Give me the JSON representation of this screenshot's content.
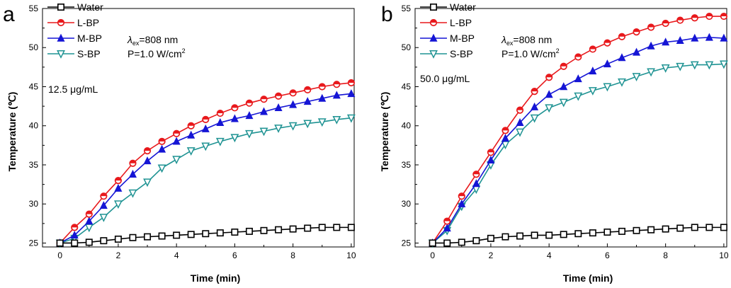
{
  "chart_data": [
    {
      "type": "line",
      "panel": "a",
      "xlabel": "Time (min)",
      "ylabel": "Temperature (℃)",
      "xlim": [
        -0.6,
        10.1
      ],
      "ylim": [
        24.5,
        55
      ],
      "xticks": [
        0,
        2,
        4,
        6,
        8,
        10
      ],
      "yticks": [
        25,
        30,
        35,
        40,
        45,
        50,
        55
      ],
      "grid": false,
      "legend": "top-left",
      "annotations": {
        "wavelength_symbol": "λ",
        "wavelength_sub": "ex",
        "wavelength_value": "=808 nm",
        "power": "P=1.0 W/cm",
        "power_exp": "2",
        "concentration": "12.5 μg/mL"
      },
      "x": [
        0,
        0.5,
        1,
        1.5,
        2,
        2.5,
        3,
        3.5,
        4,
        4.5,
        5,
        5.5,
        6,
        6.5,
        7,
        7.5,
        8,
        8.5,
        9,
        9.5,
        10
      ],
      "series": [
        {
          "name": "Water",
          "color": "#000000",
          "marker": "square",
          "values": [
            25.0,
            25.0,
            25.1,
            25.3,
            25.5,
            25.7,
            25.8,
            25.9,
            26.0,
            26.1,
            26.2,
            26.3,
            26.4,
            26.5,
            26.6,
            26.7,
            26.8,
            26.9,
            27.0,
            27.0,
            27.0
          ]
        },
        {
          "name": "L-BP",
          "color": "#e8191c",
          "marker": "circle",
          "values": [
            25.0,
            27.0,
            28.7,
            31.0,
            33.0,
            35.2,
            36.8,
            38.0,
            39.0,
            40.0,
            40.8,
            41.6,
            42.3,
            42.9,
            43.4,
            43.8,
            44.2,
            44.6,
            45.0,
            45.3,
            45.5
          ]
        },
        {
          "name": "M-BP",
          "color": "#1515d5",
          "marker": "triangle-up",
          "values": [
            25.0,
            26.0,
            27.8,
            29.8,
            32.0,
            33.8,
            35.5,
            37.0,
            38.0,
            38.8,
            39.6,
            40.4,
            40.9,
            41.3,
            41.8,
            42.3,
            42.7,
            43.1,
            43.5,
            43.9,
            44.1
          ]
        },
        {
          "name": "S-BP",
          "color": "#1f9393",
          "marker": "triangle-down",
          "values": [
            25.0,
            25.6,
            27.0,
            28.3,
            30.0,
            31.4,
            32.8,
            34.6,
            35.7,
            36.8,
            37.4,
            38.0,
            38.5,
            39.0,
            39.3,
            39.7,
            40.0,
            40.3,
            40.5,
            40.8,
            41.0
          ]
        }
      ]
    },
    {
      "type": "line",
      "panel": "b",
      "xlabel": "Time (min)",
      "ylabel": "Temperature (℃)",
      "xlim": [
        -0.6,
        10.1
      ],
      "ylim": [
        24.5,
        55
      ],
      "xticks": [
        0,
        2,
        4,
        6,
        8,
        10
      ],
      "yticks": [
        25,
        30,
        35,
        40,
        45,
        50,
        55
      ],
      "grid": false,
      "legend": "top-left",
      "annotations": {
        "wavelength_symbol": "λ",
        "wavelength_sub": "ex",
        "wavelength_value": "=808 nm",
        "power": "P=1.0 W/cm",
        "power_exp": "2",
        "concentration": "50.0 μg/mL"
      },
      "x": [
        0,
        0.5,
        1,
        1.5,
        2,
        2.5,
        3,
        3.5,
        4,
        4.5,
        5,
        5.5,
        6,
        6.5,
        7,
        7.5,
        8,
        8.5,
        9,
        9.5,
        10
      ],
      "series": [
        {
          "name": "Water",
          "color": "#000000",
          "marker": "square",
          "values": [
            25.0,
            25.0,
            25.1,
            25.3,
            25.6,
            25.8,
            25.9,
            26.0,
            26.0,
            26.1,
            26.2,
            26.3,
            26.4,
            26.5,
            26.6,
            26.7,
            26.8,
            26.9,
            27.0,
            27.0,
            27.0
          ]
        },
        {
          "name": "L-BP",
          "color": "#e8191c",
          "marker": "circle",
          "values": [
            25.0,
            27.8,
            31.0,
            33.8,
            36.6,
            39.4,
            42.0,
            44.4,
            46.2,
            47.6,
            48.8,
            49.8,
            50.6,
            51.4,
            52.0,
            52.6,
            53.1,
            53.5,
            53.8,
            54.0,
            54.0
          ]
        },
        {
          "name": "M-BP",
          "color": "#1515d5",
          "marker": "triangle-up",
          "values": [
            25.0,
            26.9,
            30.0,
            32.6,
            35.6,
            38.4,
            40.4,
            42.4,
            44.0,
            45.0,
            46.0,
            47.0,
            47.9,
            48.7,
            49.4,
            50.2,
            50.7,
            50.9,
            51.2,
            51.3,
            51.2
          ]
        },
        {
          "name": "S-BP",
          "color": "#1f9393",
          "marker": "triangle-down",
          "values": [
            25.0,
            26.6,
            29.7,
            31.9,
            35.0,
            37.6,
            39.2,
            41.0,
            42.3,
            43.0,
            43.8,
            44.5,
            45.0,
            45.6,
            46.3,
            46.9,
            47.4,
            47.6,
            47.8,
            47.8,
            47.9
          ]
        }
      ]
    }
  ]
}
